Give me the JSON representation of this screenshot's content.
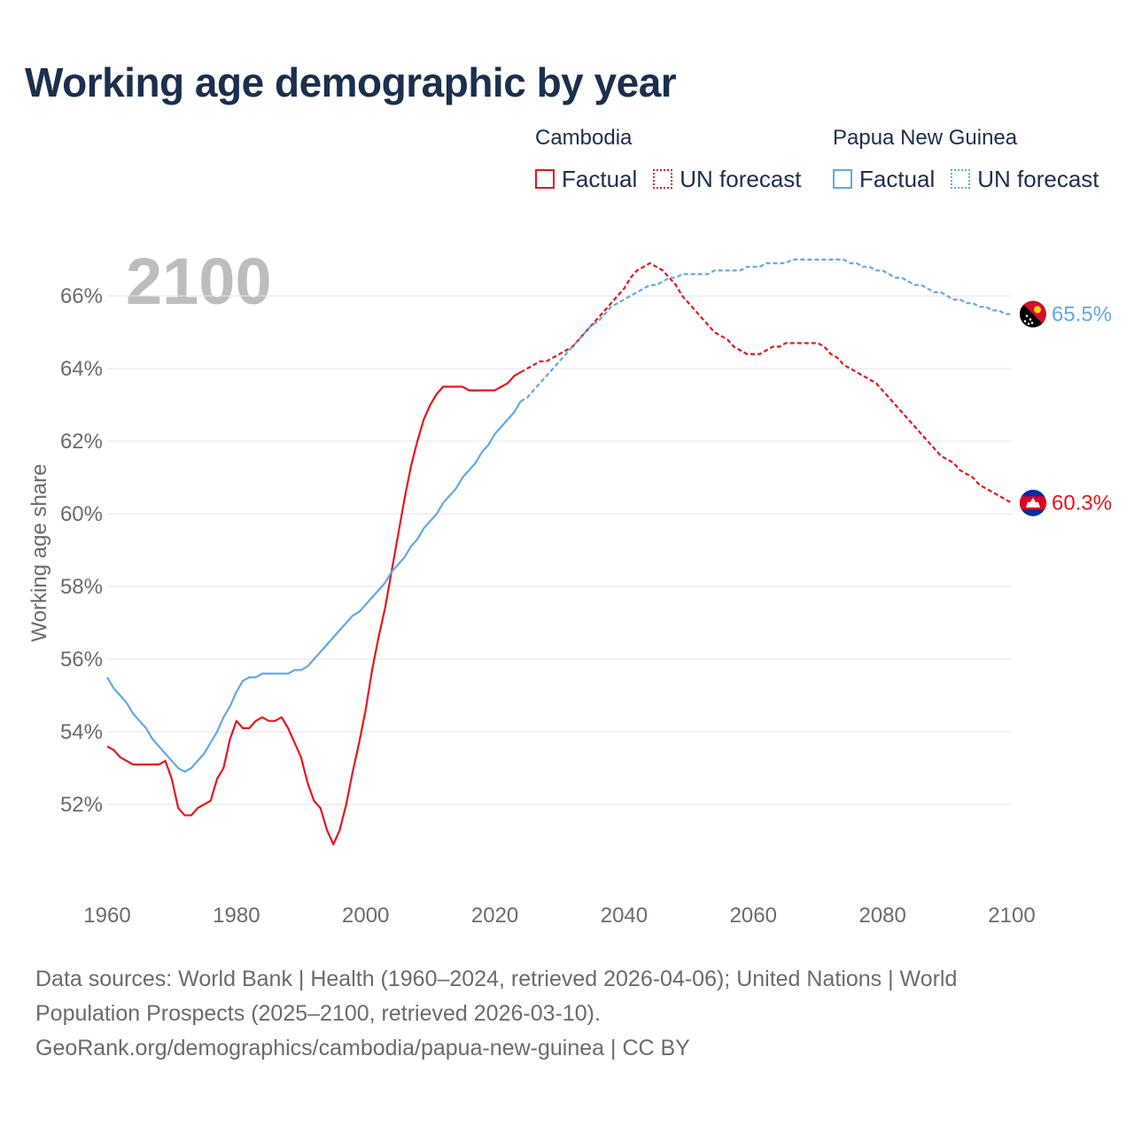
{
  "title": "Working age demographic by year",
  "legend": {
    "groups": [
      {
        "country": "Cambodia",
        "color": "#e8141c",
        "factual": "Factual",
        "forecast": "UN forecast"
      },
      {
        "country": "Papua New Guinea",
        "color": "#62a8e5",
        "factual": "Factual",
        "forecast": "UN forecast"
      }
    ]
  },
  "year_watermark": "2100",
  "footer": {
    "line1": "Data sources: World Bank | Health (1960–2024, retrieved 2026-04-06); United Nations | World",
    "line2": "Population Prospects (2025–2100, retrieved 2026-03-10).",
    "line3": "GeoRank.org/demographics/cambodia/papua-new-guinea | CC BY"
  },
  "chart_data": {
    "type": "line",
    "title": "Working age demographic by year",
    "xlabel": "",
    "ylabel": "Working age share",
    "xlim": [
      1960,
      2100
    ],
    "ylim": [
      50,
      67.5
    ],
    "xticks": [
      1960,
      1980,
      2000,
      2020,
      2040,
      2060,
      2080,
      2100
    ],
    "xtick_labels": [
      "1960",
      "1980",
      "2000",
      "2020",
      "2040",
      "2060",
      "2080",
      "2100"
    ],
    "yticks": [
      52,
      54,
      56,
      58,
      60,
      62,
      64,
      66
    ],
    "ytick_labels": [
      "52%",
      "54%",
      "56%",
      "58%",
      "60%",
      "62%",
      "64%",
      "66%"
    ],
    "grid": true,
    "factual_end_year": 2024,
    "series": [
      {
        "name": "Cambodia",
        "color": "#e8141c",
        "end_label": "60.3%",
        "flag_icon": "cambodia-flag-icon",
        "points": [
          [
            1960,
            53.6
          ],
          [
            1961,
            53.5
          ],
          [
            1962,
            53.3
          ],
          [
            1963,
            53.2
          ],
          [
            1964,
            53.1
          ],
          [
            1965,
            53.1
          ],
          [
            1966,
            53.1
          ],
          [
            1967,
            53.1
          ],
          [
            1968,
            53.1
          ],
          [
            1969,
            53.2
          ],
          [
            1970,
            52.7
          ],
          [
            1971,
            51.9
          ],
          [
            1972,
            51.7
          ],
          [
            1973,
            51.7
          ],
          [
            1974,
            51.9
          ],
          [
            1975,
            52.0
          ],
          [
            1976,
            52.1
          ],
          [
            1977,
            52.7
          ],
          [
            1978,
            53.0
          ],
          [
            1979,
            53.8
          ],
          [
            1980,
            54.3
          ],
          [
            1981,
            54.1
          ],
          [
            1982,
            54.1
          ],
          [
            1983,
            54.3
          ],
          [
            1984,
            54.4
          ],
          [
            1985,
            54.3
          ],
          [
            1986,
            54.3
          ],
          [
            1987,
            54.4
          ],
          [
            1988,
            54.1
          ],
          [
            1989,
            53.7
          ],
          [
            1990,
            53.3
          ],
          [
            1991,
            52.6
          ],
          [
            1992,
            52.1
          ],
          [
            1993,
            51.9
          ],
          [
            1994,
            51.3
          ],
          [
            1995,
            50.9
          ],
          [
            1996,
            51.3
          ],
          [
            1997,
            52.0
          ],
          [
            1998,
            52.9
          ],
          [
            1999,
            53.7
          ],
          [
            2000,
            54.6
          ],
          [
            2001,
            55.7
          ],
          [
            2002,
            56.6
          ],
          [
            2003,
            57.4
          ],
          [
            2004,
            58.4
          ],
          [
            2005,
            59.4
          ],
          [
            2006,
            60.4
          ],
          [
            2007,
            61.3
          ],
          [
            2008,
            62.0
          ],
          [
            2009,
            62.6
          ],
          [
            2010,
            63.0
          ],
          [
            2011,
            63.3
          ],
          [
            2012,
            63.5
          ],
          [
            2013,
            63.5
          ],
          [
            2014,
            63.5
          ],
          [
            2015,
            63.5
          ],
          [
            2016,
            63.4
          ],
          [
            2017,
            63.4
          ],
          [
            2018,
            63.4
          ],
          [
            2019,
            63.4
          ],
          [
            2020,
            63.4
          ],
          [
            2021,
            63.5
          ],
          [
            2022,
            63.6
          ],
          [
            2023,
            63.8
          ],
          [
            2024,
            63.9
          ],
          [
            2025,
            64.0
          ],
          [
            2026,
            64.1
          ],
          [
            2027,
            64.2
          ],
          [
            2028,
            64.2
          ],
          [
            2029,
            64.3
          ],
          [
            2030,
            64.4
          ],
          [
            2031,
            64.5
          ],
          [
            2032,
            64.6
          ],
          [
            2033,
            64.8
          ],
          [
            2034,
            65.0
          ],
          [
            2035,
            65.2
          ],
          [
            2036,
            65.4
          ],
          [
            2037,
            65.6
          ],
          [
            2038,
            65.8
          ],
          [
            2039,
            66.0
          ],
          [
            2040,
            66.2
          ],
          [
            2041,
            66.5
          ],
          [
            2042,
            66.7
          ],
          [
            2043,
            66.8
          ],
          [
            2044,
            66.9
          ],
          [
            2045,
            66.8
          ],
          [
            2046,
            66.7
          ],
          [
            2047,
            66.5
          ],
          [
            2048,
            66.3
          ],
          [
            2049,
            66.0
          ],
          [
            2050,
            65.8
          ],
          [
            2051,
            65.6
          ],
          [
            2052,
            65.4
          ],
          [
            2053,
            65.2
          ],
          [
            2054,
            65.0
          ],
          [
            2055,
            64.9
          ],
          [
            2056,
            64.8
          ],
          [
            2057,
            64.6
          ],
          [
            2058,
            64.5
          ],
          [
            2059,
            64.4
          ],
          [
            2060,
            64.4
          ],
          [
            2061,
            64.4
          ],
          [
            2062,
            64.5
          ],
          [
            2063,
            64.6
          ],
          [
            2064,
            64.6
          ],
          [
            2065,
            64.7
          ],
          [
            2066,
            64.7
          ],
          [
            2067,
            64.7
          ],
          [
            2068,
            64.7
          ],
          [
            2069,
            64.7
          ],
          [
            2070,
            64.7
          ],
          [
            2071,
            64.6
          ],
          [
            2072,
            64.4
          ],
          [
            2073,
            64.3
          ],
          [
            2074,
            64.1
          ],
          [
            2075,
            64.0
          ],
          [
            2076,
            63.9
          ],
          [
            2077,
            63.8
          ],
          [
            2078,
            63.7
          ],
          [
            2079,
            63.6
          ],
          [
            2080,
            63.4
          ],
          [
            2081,
            63.2
          ],
          [
            2082,
            63.0
          ],
          [
            2083,
            62.8
          ],
          [
            2084,
            62.6
          ],
          [
            2085,
            62.4
          ],
          [
            2086,
            62.2
          ],
          [
            2087,
            62.0
          ],
          [
            2088,
            61.8
          ],
          [
            2089,
            61.6
          ],
          [
            2090,
            61.5
          ],
          [
            2091,
            61.4
          ],
          [
            2092,
            61.2
          ],
          [
            2093,
            61.1
          ],
          [
            2094,
            61.0
          ],
          [
            2095,
            60.8
          ],
          [
            2096,
            60.7
          ],
          [
            2097,
            60.6
          ],
          [
            2098,
            60.5
          ],
          [
            2099,
            60.4
          ],
          [
            2100,
            60.3
          ]
        ]
      },
      {
        "name": "Papua New Guinea",
        "color": "#62a8e5",
        "end_label": "65.5%",
        "flag_icon": "papua-new-guinea-flag-icon",
        "points": [
          [
            1960,
            55.5
          ],
          [
            1961,
            55.2
          ],
          [
            1962,
            55.0
          ],
          [
            1963,
            54.8
          ],
          [
            1964,
            54.5
          ],
          [
            1965,
            54.3
          ],
          [
            1966,
            54.1
          ],
          [
            1967,
            53.8
          ],
          [
            1968,
            53.6
          ],
          [
            1969,
            53.4
          ],
          [
            1970,
            53.2
          ],
          [
            1971,
            53.0
          ],
          [
            1972,
            52.9
          ],
          [
            1973,
            53.0
          ],
          [
            1974,
            53.2
          ],
          [
            1975,
            53.4
          ],
          [
            1976,
            53.7
          ],
          [
            1977,
            54.0
          ],
          [
            1978,
            54.4
          ],
          [
            1979,
            54.7
          ],
          [
            1980,
            55.1
          ],
          [
            1981,
            55.4
          ],
          [
            1982,
            55.5
          ],
          [
            1983,
            55.5
          ],
          [
            1984,
            55.6
          ],
          [
            1985,
            55.6
          ],
          [
            1986,
            55.6
          ],
          [
            1987,
            55.6
          ],
          [
            1988,
            55.6
          ],
          [
            1989,
            55.7
          ],
          [
            1990,
            55.7
          ],
          [
            1991,
            55.8
          ],
          [
            1992,
            56.0
          ],
          [
            1993,
            56.2
          ],
          [
            1994,
            56.4
          ],
          [
            1995,
            56.6
          ],
          [
            1996,
            56.8
          ],
          [
            1997,
            57.0
          ],
          [
            1998,
            57.2
          ],
          [
            1999,
            57.3
          ],
          [
            2000,
            57.5
          ],
          [
            2001,
            57.7
          ],
          [
            2002,
            57.9
          ],
          [
            2003,
            58.1
          ],
          [
            2004,
            58.4
          ],
          [
            2005,
            58.6
          ],
          [
            2006,
            58.8
          ],
          [
            2007,
            59.1
          ],
          [
            2008,
            59.3
          ],
          [
            2009,
            59.6
          ],
          [
            2010,
            59.8
          ],
          [
            2011,
            60.0
          ],
          [
            2012,
            60.3
          ],
          [
            2013,
            60.5
          ],
          [
            2014,
            60.7
          ],
          [
            2015,
            61.0
          ],
          [
            2016,
            61.2
          ],
          [
            2017,
            61.4
          ],
          [
            2018,
            61.7
          ],
          [
            2019,
            61.9
          ],
          [
            2020,
            62.2
          ],
          [
            2021,
            62.4
          ],
          [
            2022,
            62.6
          ],
          [
            2023,
            62.8
          ],
          [
            2024,
            63.1
          ],
          [
            2025,
            63.2
          ],
          [
            2026,
            63.4
          ],
          [
            2027,
            63.6
          ],
          [
            2028,
            63.8
          ],
          [
            2029,
            64.0
          ],
          [
            2030,
            64.2
          ],
          [
            2031,
            64.4
          ],
          [
            2032,
            64.6
          ],
          [
            2033,
            64.8
          ],
          [
            2034,
            65.0
          ],
          [
            2035,
            65.2
          ],
          [
            2036,
            65.3
          ],
          [
            2037,
            65.5
          ],
          [
            2038,
            65.7
          ],
          [
            2039,
            65.8
          ],
          [
            2040,
            65.9
          ],
          [
            2041,
            66.0
          ],
          [
            2042,
            66.1
          ],
          [
            2043,
            66.2
          ],
          [
            2044,
            66.3
          ],
          [
            2045,
            66.3
          ],
          [
            2046,
            66.4
          ],
          [
            2047,
            66.5
          ],
          [
            2048,
            66.5
          ],
          [
            2049,
            66.6
          ],
          [
            2050,
            66.6
          ],
          [
            2051,
            66.6
          ],
          [
            2052,
            66.6
          ],
          [
            2053,
            66.6
          ],
          [
            2054,
            66.7
          ],
          [
            2055,
            66.7
          ],
          [
            2056,
            66.7
          ],
          [
            2057,
            66.7
          ],
          [
            2058,
            66.7
          ],
          [
            2059,
            66.8
          ],
          [
            2060,
            66.8
          ],
          [
            2061,
            66.8
          ],
          [
            2062,
            66.9
          ],
          [
            2063,
            66.9
          ],
          [
            2064,
            66.9
          ],
          [
            2065,
            66.9
          ],
          [
            2066,
            67.0
          ],
          [
            2067,
            67.0
          ],
          [
            2068,
            67.0
          ],
          [
            2069,
            67.0
          ],
          [
            2070,
            67.0
          ],
          [
            2071,
            67.0
          ],
          [
            2072,
            67.0
          ],
          [
            2073,
            67.0
          ],
          [
            2074,
            67.0
          ],
          [
            2075,
            66.9
          ],
          [
            2076,
            66.9
          ],
          [
            2077,
            66.8
          ],
          [
            2078,
            66.8
          ],
          [
            2079,
            66.7
          ],
          [
            2080,
            66.7
          ],
          [
            2081,
            66.6
          ],
          [
            2082,
            66.5
          ],
          [
            2083,
            66.5
          ],
          [
            2084,
            66.4
          ],
          [
            2085,
            66.3
          ],
          [
            2086,
            66.3
          ],
          [
            2087,
            66.2
          ],
          [
            2088,
            66.1
          ],
          [
            2089,
            66.1
          ],
          [
            2090,
            66.0
          ],
          [
            2091,
            65.9
          ],
          [
            2092,
            65.9
          ],
          [
            2093,
            65.8
          ],
          [
            2094,
            65.8
          ],
          [
            2095,
            65.7
          ],
          [
            2096,
            65.7
          ],
          [
            2097,
            65.6
          ],
          [
            2098,
            65.6
          ],
          [
            2099,
            65.5
          ],
          [
            2100,
            65.5
          ]
        ]
      }
    ]
  }
}
